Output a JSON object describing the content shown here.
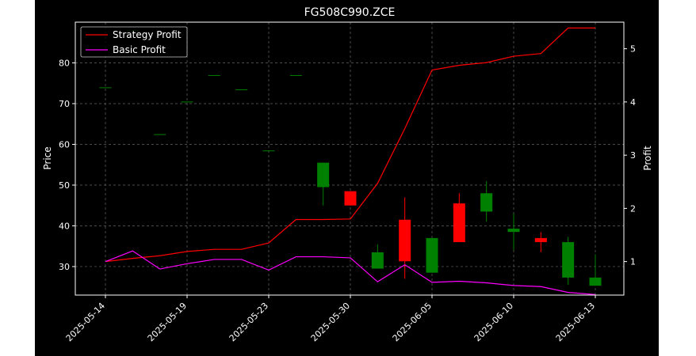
{
  "chart_data": {
    "type": "candlestick+line",
    "title": "FG508C990.ZCE",
    "ylabel_left": "Price",
    "ylabel_right": "Profit",
    "ylim_left": [
      23,
      90
    ],
    "ylim_right": [
      0.37,
      5.5
    ],
    "yticks_left": [
      30,
      40,
      50,
      60,
      70,
      80
    ],
    "yticks_right": [
      1,
      2,
      3,
      4,
      5
    ],
    "xticks": [
      "2025-05-14",
      "2025-05-19",
      "2025-05-23",
      "2025-05-30",
      "2025-06-05",
      "2025-06-10",
      "2025-06-13"
    ],
    "grid": true,
    "legend_position": "top-left",
    "legend": [
      {
        "name": "Strategy Profit",
        "color": "#ff0000"
      },
      {
        "name": "Basic Profit",
        "color": "#ff00ff"
      }
    ],
    "candles": [
      {
        "o": 74,
        "h": 74,
        "l": 74,
        "c": 74
      },
      {
        "o": 88,
        "h": 88,
        "l": 88,
        "c": 88
      },
      {
        "o": 62.5,
        "h": 62.5,
        "l": 62.5,
        "c": 62.5
      },
      {
        "o": 70.5,
        "h": 70.5,
        "l": 70.5,
        "c": 70.5
      },
      {
        "o": 77,
        "h": 77,
        "l": 77,
        "c": 77
      },
      {
        "o": 73.5,
        "h": 73.5,
        "l": 73.5,
        "c": 73.5
      },
      {
        "o": 58.5,
        "h": 58.5,
        "l": 58.5,
        "c": 58.5
      },
      {
        "o": 77,
        "h": 77,
        "l": 77,
        "c": 77
      },
      {
        "o": 49.5,
        "h": 55.5,
        "l": 45,
        "c": 55.5
      },
      {
        "o": 48.5,
        "h": 48.5,
        "l": 45,
        "c": 45
      },
      {
        "o": 29.5,
        "h": 35.5,
        "l": 29.5,
        "c": 33.5
      },
      {
        "o": 41.5,
        "h": 47,
        "l": 27,
        "c": 31.3
      },
      {
        "o": 28.5,
        "h": 37,
        "l": 28.5,
        "c": 37
      },
      {
        "o": 45.5,
        "h": 48,
        "l": 36,
        "c": 36
      },
      {
        "o": 43.5,
        "h": 51,
        "l": 41,
        "c": 48
      },
      {
        "o": 38.5,
        "h": 43,
        "l": 34,
        "c": 39.3
      },
      {
        "o": 37,
        "h": 38.5,
        "l": 33.5,
        "c": 36
      },
      {
        "o": 27.3,
        "h": 37.3,
        "l": 25.5,
        "c": 36
      },
      {
        "o": 25.3,
        "h": 33,
        "l": 25.3,
        "c": 27.3
      }
    ],
    "series": [
      {
        "name": "Strategy Profit",
        "color": "#ff0000",
        "values": [
          1.0,
          1.06,
          1.11,
          1.19,
          1.23,
          1.23,
          1.35,
          1.79,
          1.79,
          1.8,
          2.47,
          3.5,
          4.6,
          4.69,
          4.74,
          4.86,
          4.91,
          5.39,
          5.39
        ]
      },
      {
        "name": "Basic Profit",
        "color": "#ff00ff",
        "values": [
          1.0,
          1.2,
          0.86,
          0.96,
          1.04,
          1.04,
          0.84,
          1.09,
          1.09,
          1.07,
          0.62,
          0.94,
          0.61,
          0.63,
          0.6,
          0.55,
          0.53,
          0.42,
          0.38
        ]
      }
    ]
  }
}
